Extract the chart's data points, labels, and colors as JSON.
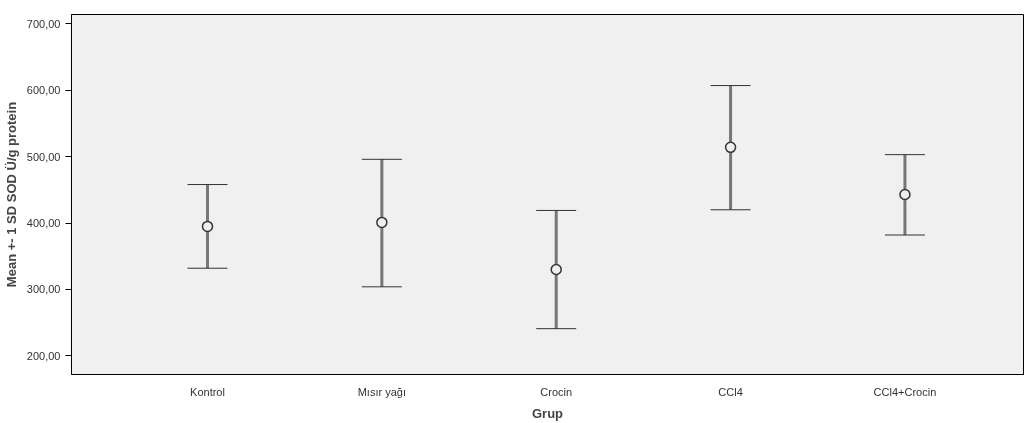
{
  "chart_data": {
    "type": "scatter",
    "xlabel": "Grup",
    "ylabel": "Mean +- 1 SD SOD Ü/g protein",
    "categories": [
      "Kontrol",
      "Mısır yağı",
      "Crocin",
      "CCl4",
      "CCl4+Crocin"
    ],
    "values": [
      395,
      401,
      330,
      514,
      443
    ],
    "errors": [
      [
        332,
        458
      ],
      [
        304,
        496
      ],
      [
        241,
        419
      ],
      [
        420,
        607
      ],
      [
        382,
        503
      ]
    ],
    "color": "#333333",
    "marker": "circle",
    "grid": false,
    "ylim": [
      172,
      714
    ],
    "yticks": [
      {
        "value": 200,
        "label": "200,00"
      },
      {
        "value": 300,
        "label": "300,00"
      },
      {
        "value": 400,
        "label": "400,00"
      },
      {
        "value": 500,
        "label": "500,00"
      },
      {
        "value": 600,
        "label": "600,00"
      },
      {
        "value": 700,
        "label": "700,00"
      }
    ]
  }
}
